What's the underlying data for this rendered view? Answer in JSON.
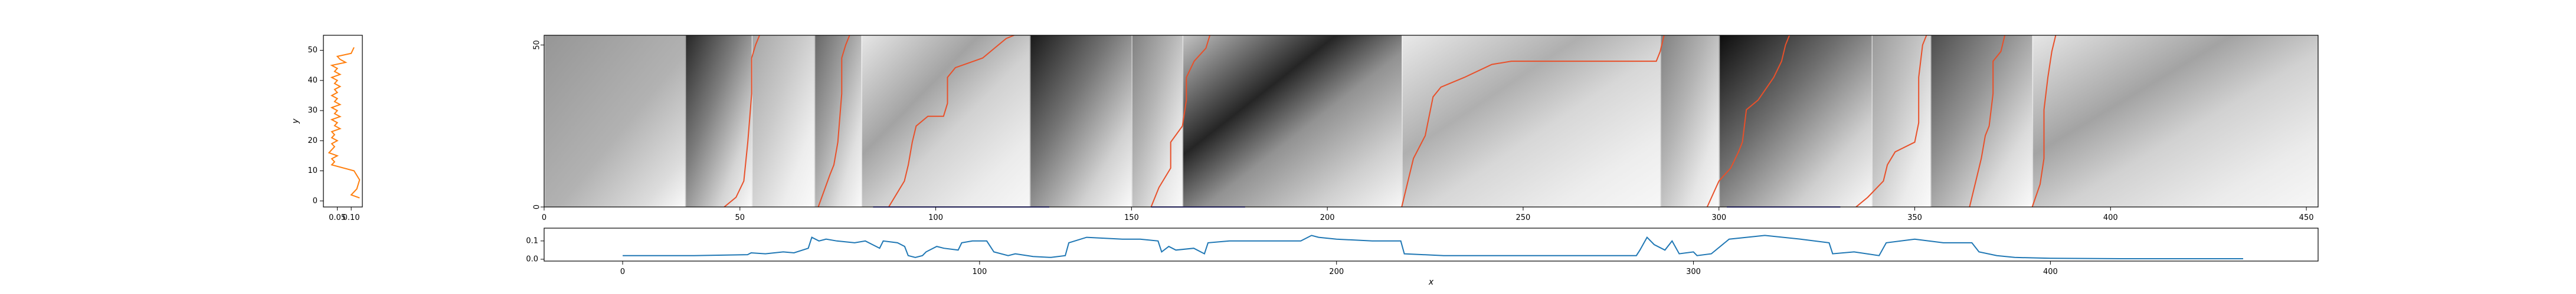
{
  "chart_data": [
    {
      "name": "heatmap-main",
      "type": "heatmap",
      "title": "",
      "xlim": [
        0,
        453
      ],
      "ylim": [
        0,
        53
      ],
      "x_ticks": [
        0,
        50,
        100,
        150,
        200,
        250,
        300,
        350,
        400,
        450
      ],
      "y_ticks": [
        0,
        50
      ],
      "colormap": "grayscale (white = low, black = high)",
      "blocks": [
        {
          "x0": 0,
          "x1": 36,
          "peak": 0.55,
          "style": "uniform-gradient"
        },
        {
          "x0": 36,
          "x1": 53,
          "peak": 0.85,
          "style": "descending"
        },
        {
          "x0": 53,
          "x1": 69,
          "peak": 0.35,
          "style": "descending"
        },
        {
          "x0": 69,
          "x1": 81,
          "peak": 0.6,
          "style": "descending"
        },
        {
          "x0": 81,
          "x1": 124,
          "peak": 0.4,
          "style": "wide"
        },
        {
          "x0": 124,
          "x1": 150,
          "peak": 0.9,
          "style": "descending"
        },
        {
          "x0": 150,
          "x1": 163,
          "peak": 0.5,
          "style": "descending"
        },
        {
          "x0": 163,
          "x1": 219,
          "peak": 0.95,
          "style": "wide"
        },
        {
          "x0": 219,
          "x1": 285,
          "peak": 0.35,
          "style": "wide"
        },
        {
          "x0": 285,
          "x1": 300,
          "peak": 0.5,
          "style": "descending"
        },
        {
          "x0": 300,
          "x1": 339,
          "peak": 0.95,
          "style": "descending"
        },
        {
          "x0": 339,
          "x1": 354,
          "peak": 0.4,
          "style": "descending"
        },
        {
          "x0": 354,
          "x1": 380,
          "peak": 0.7,
          "style": "descending"
        },
        {
          "x0": 380,
          "x1": 453,
          "peak": 0.4,
          "style": "wide"
        }
      ],
      "series": [
        {
          "color": "#e8502a",
          "points": [
            [
              46,
              0
            ],
            [
              49,
              3
            ],
            [
              51,
              8
            ],
            [
              52,
              20
            ],
            [
              53,
              35
            ],
            [
              53,
              46
            ],
            [
              54,
              50
            ],
            [
              55,
              53
            ]
          ]
        },
        {
          "color": "#e8502a",
          "points": [
            [
              70,
              0
            ],
            [
              73,
              10
            ],
            [
              74,
              13
            ],
            [
              75,
              20
            ],
            [
              76,
              35
            ],
            [
              76,
              46
            ],
            [
              77,
              50
            ],
            [
              78,
              53
            ]
          ]
        },
        {
          "color": "#e8502a",
          "points": [
            [
              88,
              0
            ],
            [
              92,
              8
            ],
            [
              93,
              13
            ],
            [
              94,
              20
            ],
            [
              95,
              25
            ],
            [
              98,
              28
            ],
            [
              102,
              28
            ],
            [
              103,
              32
            ],
            [
              103,
              40
            ],
            [
              105,
              43
            ],
            [
              112,
              46
            ],
            [
              115,
              49
            ],
            [
              118,
              52
            ],
            [
              120,
              53
            ]
          ]
        },
        {
          "color": "#e8502a",
          "points": [
            [
              155,
              0
            ],
            [
              157,
              6
            ],
            [
              160,
              12
            ],
            [
              160,
              20
            ],
            [
              163,
              25
            ],
            [
              164,
              33
            ],
            [
              164,
              40
            ],
            [
              166,
              45
            ],
            [
              169,
              49
            ],
            [
              170,
              53
            ]
          ]
        },
        {
          "color": "#e8502a",
          "points": [
            [
              219,
              0
            ],
            [
              222,
              15
            ],
            [
              225,
              22
            ],
            [
              227,
              34
            ],
            [
              229,
              37
            ],
            [
              235,
              40
            ],
            [
              242,
              44
            ],
            [
              247,
              45
            ],
            [
              255,
              45
            ],
            [
              265,
              45
            ],
            [
              284,
              45
            ],
            [
              285,
              48
            ],
            [
              286,
              53
            ]
          ]
        },
        {
          "color": "#e8502a",
          "points": [
            [
              297,
              0
            ],
            [
              300,
              8
            ],
            [
              303,
              12
            ],
            [
              305,
              17
            ],
            [
              306,
              20
            ],
            [
              307,
              30
            ],
            [
              310,
              33
            ],
            [
              314,
              40
            ],
            [
              316,
              45
            ],
            [
              317,
              50
            ],
            [
              318,
              53
            ]
          ]
        },
        {
          "color": "#e8502a",
          "points": [
            [
              335,
              0
            ],
            [
              338,
              3
            ],
            [
              342,
              8
            ],
            [
              343,
              13
            ],
            [
              345,
              17
            ],
            [
              350,
              20
            ],
            [
              351,
              26
            ],
            [
              351,
              40
            ],
            [
              352,
              50
            ],
            [
              353,
              53
            ]
          ]
        },
        {
          "color": "#e8502a",
          "points": [
            [
              364,
              0
            ],
            [
              366,
              10
            ],
            [
              367,
              15
            ],
            [
              368,
              22
            ],
            [
              369,
              25
            ],
            [
              370,
              35
            ],
            [
              370,
              45
            ],
            [
              372,
              48
            ],
            [
              373,
              53
            ]
          ]
        },
        {
          "color": "#e8502a",
          "points": [
            [
              380,
              0
            ],
            [
              382,
              7
            ],
            [
              383,
              15
            ],
            [
              383,
              30
            ],
            [
              384,
              40
            ],
            [
              385,
              48
            ],
            [
              386,
              53
            ]
          ]
        }
      ],
      "segments": [
        {
          "color": "#4a4acf",
          "x0": 84,
          "x1": 129,
          "y": -1
        },
        {
          "color": "#4a4acf",
          "x0": 155,
          "x1": 179,
          "y": -1
        },
        {
          "color": "#4a4acf",
          "x0": 302,
          "x1": 331,
          "y": -1
        }
      ]
    },
    {
      "name": "left-profile",
      "type": "line",
      "title": "",
      "ylabel": "y",
      "xlabel": "",
      "xlim": [
        0,
        0.14
      ],
      "ylim": [
        -2,
        55
      ],
      "x_ticks": [
        0.05,
        0.1
      ],
      "x_tick_labels": [
        "0.05",
        "0.10"
      ],
      "y_ticks": [
        0,
        10,
        20,
        30,
        40,
        50
      ],
      "series": [
        {
          "color": "#ff7f0e",
          "points": [
            [
              0.13,
              1
            ],
            [
              0.1,
              2
            ],
            [
              0.12,
              4
            ],
            [
              0.13,
              7
            ],
            [
              0.11,
              10
            ],
            [
              0.03,
              12
            ],
            [
              0.04,
              13
            ],
            [
              0.03,
              14
            ],
            [
              0.05,
              15
            ],
            [
              0.02,
              16
            ],
            [
              0.03,
              17
            ],
            [
              0.04,
              18
            ],
            [
              0.03,
              19
            ],
            [
              0.05,
              20
            ],
            [
              0.03,
              21
            ],
            [
              0.04,
              22
            ],
            [
              0.03,
              23
            ],
            [
              0.06,
              24
            ],
            [
              0.04,
              25
            ],
            [
              0.05,
              26
            ],
            [
              0.03,
              27
            ],
            [
              0.06,
              28
            ],
            [
              0.04,
              29
            ],
            [
              0.05,
              30
            ],
            [
              0.03,
              31
            ],
            [
              0.06,
              32
            ],
            [
              0.04,
              33
            ],
            [
              0.05,
              34
            ],
            [
              0.03,
              35
            ],
            [
              0.05,
              36
            ],
            [
              0.04,
              37
            ],
            [
              0.06,
              38
            ],
            [
              0.04,
              39
            ],
            [
              0.05,
              40
            ],
            [
              0.03,
              41
            ],
            [
              0.06,
              42
            ],
            [
              0.04,
              43
            ],
            [
              0.05,
              44
            ],
            [
              0.03,
              45
            ],
            [
              0.08,
              46
            ],
            [
              0.06,
              47
            ],
            [
              0.05,
              48
            ],
            [
              0.1,
              49
            ],
            [
              0.11,
              51
            ]
          ]
        }
      ]
    },
    {
      "name": "bottom-profile",
      "type": "line",
      "title": "",
      "xlabel": "x",
      "ylabel": "",
      "xlim": [
        -22,
        475
      ],
      "ylim": [
        -0.01,
        0.17
      ],
      "x_ticks": [
        0,
        100,
        200,
        300,
        400
      ],
      "y_ticks": [
        0.0,
        0.1
      ],
      "y_tick_labels": [
        "0.0",
        "0.1"
      ],
      "series": [
        {
          "color": "#1f77b4",
          "points": [
            [
              0,
              0.02
            ],
            [
              20,
              0.02
            ],
            [
              35,
              0.025
            ],
            [
              36,
              0.035
            ],
            [
              40,
              0.03
            ],
            [
              45,
              0.04
            ],
            [
              48,
              0.035
            ],
            [
              52,
              0.06
            ],
            [
              53,
              0.12
            ],
            [
              55,
              0.1
            ],
            [
              57,
              0.11
            ],
            [
              60,
              0.1
            ],
            [
              65,
              0.09
            ],
            [
              68,
              0.1
            ],
            [
              70,
              0.08
            ],
            [
              72,
              0.06
            ],
            [
              73,
              0.1
            ],
            [
              77,
              0.09
            ],
            [
              79,
              0.07
            ],
            [
              80,
              0.02
            ],
            [
              82,
              0.01
            ],
            [
              84,
              0.02
            ],
            [
              85,
              0.04
            ],
            [
              88,
              0.07
            ],
            [
              90,
              0.06
            ],
            [
              94,
              0.05
            ],
            [
              95,
              0.09
            ],
            [
              98,
              0.1
            ],
            [
              102,
              0.1
            ],
            [
              104,
              0.04
            ],
            [
              108,
              0.02
            ],
            [
              110,
              0.03
            ],
            [
              115,
              0.015
            ],
            [
              120,
              0.01
            ],
            [
              124,
              0.02
            ],
            [
              125,
              0.09
            ],
            [
              130,
              0.12
            ],
            [
              140,
              0.11
            ],
            [
              145,
              0.11
            ],
            [
              150,
              0.1
            ],
            [
              151,
              0.04
            ],
            [
              153,
              0.07
            ],
            [
              155,
              0.05
            ],
            [
              160,
              0.06
            ],
            [
              163,
              0.03
            ],
            [
              164,
              0.09
            ],
            [
              170,
              0.1
            ],
            [
              185,
              0.1
            ],
            [
              190,
              0.1
            ],
            [
              193,
              0.13
            ],
            [
              195,
              0.12
            ],
            [
              200,
              0.11
            ],
            [
              210,
              0.1
            ],
            [
              218,
              0.1
            ],
            [
              219,
              0.03
            ],
            [
              230,
              0.02
            ],
            [
              250,
              0.02
            ],
            [
              270,
              0.02
            ],
            [
              284,
              0.02
            ],
            [
              285,
              0.05
            ],
            [
              287,
              0.12
            ],
            [
              289,
              0.08
            ],
            [
              292,
              0.05
            ],
            [
              294,
              0.1
            ],
            [
              296,
              0.03
            ],
            [
              300,
              0.04
            ],
            [
              301,
              0.02
            ],
            [
              305,
              0.03
            ],
            [
              310,
              0.11
            ],
            [
              320,
              0.13
            ],
            [
              330,
              0.11
            ],
            [
              338,
              0.09
            ],
            [
              339,
              0.03
            ],
            [
              345,
              0.04
            ],
            [
              352,
              0.02
            ],
            [
              354,
              0.09
            ],
            [
              362,
              0.11
            ],
            [
              370,
              0.09
            ],
            [
              378,
              0.09
            ],
            [
              380,
              0.04
            ],
            [
              385,
              0.02
            ],
            [
              390,
              0.01
            ],
            [
              400,
              0.005
            ],
            [
              420,
              0.003
            ],
            [
              454,
              0.003
            ]
          ]
        }
      ]
    }
  ]
}
